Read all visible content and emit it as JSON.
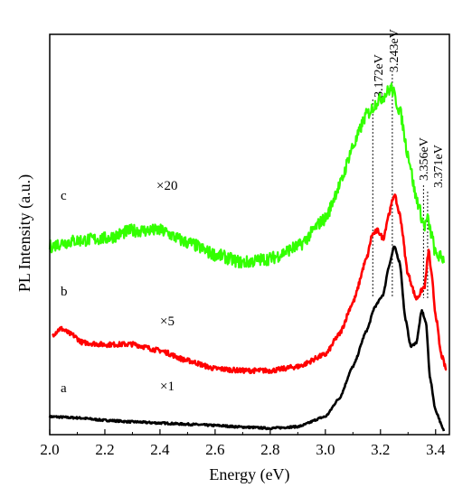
{
  "chart_data": {
    "type": "line",
    "xlabel": "Energy (eV)",
    "ylabel": "PL Intensity (a.u.)",
    "xlim": [
      2.0,
      3.45
    ],
    "ylim": [
      0,
      100
    ],
    "x_ticks": [
      "2.0",
      "2.2",
      "2.4",
      "2.6",
      "2.8",
      "3.0",
      "3.2",
      "3.4"
    ],
    "y_ticks_shown": false,
    "series": [
      {
        "name": "a",
        "multiplier": "×1",
        "color": "#000000",
        "points": [
          [
            2.0,
            4.5
          ],
          [
            2.1,
            4.2
          ],
          [
            2.2,
            3.6
          ],
          [
            2.3,
            3.2
          ],
          [
            2.4,
            2.9
          ],
          [
            2.5,
            2.6
          ],
          [
            2.6,
            2.3
          ],
          [
            2.7,
            1.9
          ],
          [
            2.8,
            1.6
          ],
          [
            2.9,
            2.0
          ],
          [
            3.0,
            4.5
          ],
          [
            3.05,
            9
          ],
          [
            3.1,
            17
          ],
          [
            3.15,
            26
          ],
          [
            3.18,
            32
          ],
          [
            3.21,
            35
          ],
          [
            3.23,
            42
          ],
          [
            3.25,
            47
          ],
          [
            3.27,
            43
          ],
          [
            3.29,
            29
          ],
          [
            3.31,
            22
          ],
          [
            3.33,
            23
          ],
          [
            3.35,
            31
          ],
          [
            3.365,
            28
          ],
          [
            3.38,
            14
          ],
          [
            3.4,
            6
          ],
          [
            3.43,
            1
          ]
        ]
      },
      {
        "name": "b",
        "multiplier": "×5",
        "color": "#ff0000",
        "points": [
          [
            2.01,
            25
          ],
          [
            2.04,
            26.5
          ],
          [
            2.08,
            25
          ],
          [
            2.12,
            23
          ],
          [
            2.2,
            22.5
          ],
          [
            2.3,
            22.6
          ],
          [
            2.4,
            21
          ],
          [
            2.5,
            18.5
          ],
          [
            2.6,
            16.5
          ],
          [
            2.7,
            16
          ],
          [
            2.8,
            16
          ],
          [
            2.9,
            17
          ],
          [
            3.0,
            20
          ],
          [
            3.05,
            25
          ],
          [
            3.1,
            33
          ],
          [
            3.15,
            44
          ],
          [
            3.17,
            50
          ],
          [
            3.19,
            51
          ],
          [
            3.21,
            49
          ],
          [
            3.23,
            55
          ],
          [
            3.25,
            60
          ],
          [
            3.27,
            55
          ],
          [
            3.3,
            40
          ],
          [
            3.33,
            34
          ],
          [
            3.36,
            37
          ],
          [
            3.375,
            46
          ],
          [
            3.385,
            40
          ],
          [
            3.4,
            30
          ],
          [
            3.42,
            20
          ],
          [
            3.44,
            16
          ]
        ]
      },
      {
        "name": "c",
        "multiplier": "×20",
        "color": "#33ff00",
        "points": [
          [
            2.0,
            47
          ],
          [
            2.05,
            48
          ],
          [
            2.1,
            48.5
          ],
          [
            2.2,
            49
          ],
          [
            2.3,
            51
          ],
          [
            2.4,
            51
          ],
          [
            2.5,
            48
          ],
          [
            2.6,
            45
          ],
          [
            2.7,
            43
          ],
          [
            2.8,
            44
          ],
          [
            2.9,
            47
          ],
          [
            3.0,
            54
          ],
          [
            3.05,
            62
          ],
          [
            3.1,
            72
          ],
          [
            3.15,
            80
          ],
          [
            3.2,
            84
          ],
          [
            3.24,
            86.5
          ],
          [
            3.27,
            81
          ],
          [
            3.3,
            70
          ],
          [
            3.33,
            59
          ],
          [
            3.36,
            52
          ],
          [
            3.37,
            54
          ],
          [
            3.385,
            50
          ],
          [
            3.4,
            45
          ],
          [
            3.43,
            44
          ]
        ]
      }
    ],
    "annotations": [
      {
        "label": "a",
        "series": "a"
      },
      {
        "label": "b",
        "series": "b"
      },
      {
        "label": "c",
        "series": "c"
      },
      {
        "label": "×1"
      },
      {
        "label": "×5"
      },
      {
        "label": "×20"
      }
    ],
    "peaks": [
      {
        "label": "3.172eV",
        "x": 3.172
      },
      {
        "label": "3.243eV",
        "x": 3.243
      },
      {
        "label": "3.356eV",
        "x": 3.356
      },
      {
        "label": "3.371eV",
        "x": 3.371
      }
    ]
  }
}
